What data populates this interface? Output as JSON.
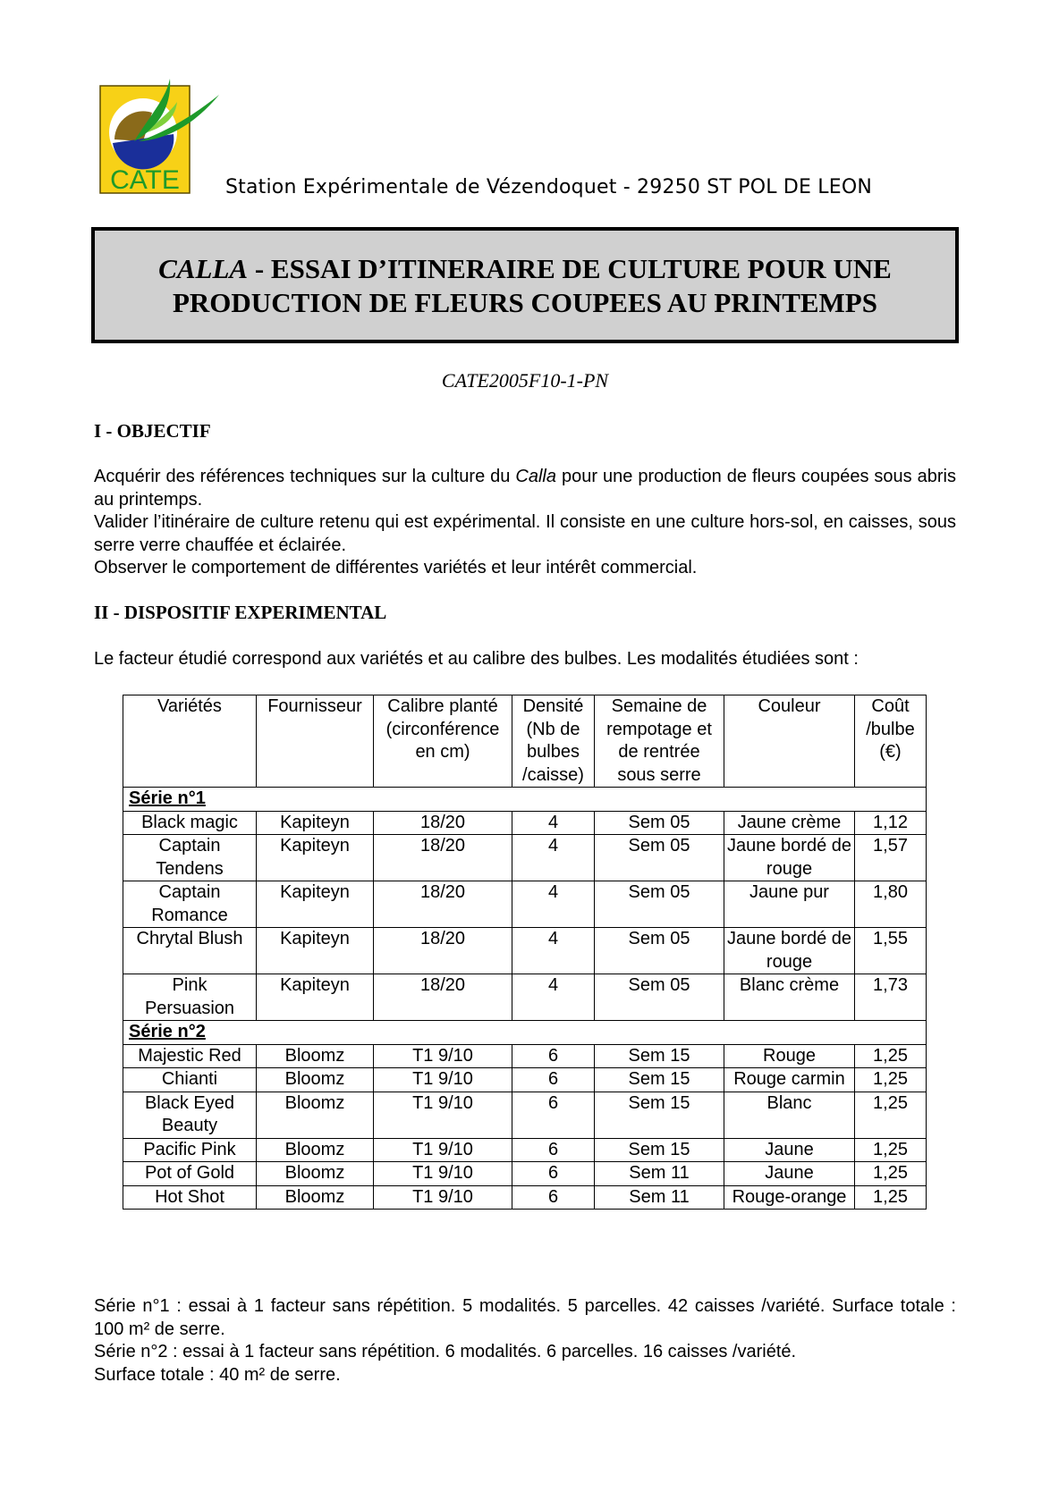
{
  "header": {
    "logo_text": "CATE",
    "station": "Station Expérimentale de Vézendoquet - 29250 ST POL DE LEON",
    "title_italic": "CALLA",
    "title_line1_rest": " - ESSAI D’ITINERAIRE DE CULTURE POUR UNE",
    "title_line2": "PRODUCTION DE FLEURS COUPEES AU PRINTEMPS",
    "code": "CATE2005F10-1-PN"
  },
  "objectif": {
    "heading": "I - OBJECTIF",
    "p1_before": "Acquérir des références techniques sur la culture du ",
    "p1_italic": "Calla",
    "p1_after": " pour une production de fleurs coupées sous abris au printemps.",
    "p2": "Valider l’itinéraire de culture retenu qui est expérimental. Il consiste en une culture hors-sol, en caisses, sous serre verre chauffée et éclairée.",
    "p3": "Observer le comportement de différentes variétés et leur intérêt commercial."
  },
  "dispositif": {
    "heading": "II - DISPOSITIF EXPERIMENTAL",
    "intro": "Le facteur étudié correspond aux variétés et au calibre des bulbes. Les modalités étudiées sont :"
  },
  "table": {
    "headers": [
      "Variétés",
      "Fournisseur",
      "Calibre planté (circonférence en cm)",
      "Densité (Nb de bulbes /caisse)",
      "Semaine de rempotage et de rentrée sous serre",
      "Couleur",
      "Coût /bulbe (€)"
    ],
    "series": [
      {
        "label": "Série n°1",
        "rows": [
          [
            "Black magic",
            "Kapiteyn",
            "18/20",
            "4",
            "Sem 05",
            "Jaune crème",
            "1,12"
          ],
          [
            "Captain Tendens",
            "Kapiteyn",
            "18/20",
            "4",
            "Sem 05",
            "Jaune bordé de rouge",
            "1,57"
          ],
          [
            "Captain Romance",
            "Kapiteyn",
            "18/20",
            "4",
            "Sem 05",
            "Jaune pur",
            "1,80"
          ],
          [
            "Chrytal Blush",
            "Kapiteyn",
            "18/20",
            "4",
            "Sem 05",
            "Jaune bordé de rouge",
            "1,55"
          ],
          [
            "Pink Persuasion",
            "Kapiteyn",
            "18/20",
            "4",
            "Sem 05",
            "Blanc crème",
            "1,73"
          ]
        ]
      },
      {
        "label": "Série n°2",
        "rows": [
          [
            "Majestic Red",
            "Bloomz",
            "T1 9/10",
            "6",
            "Sem 15",
            "Rouge",
            "1,25"
          ],
          [
            "Chianti",
            "Bloomz",
            "T1 9/10",
            "6",
            "Sem 15",
            "Rouge carmin",
            "1,25"
          ],
          [
            "Black Eyed Beauty",
            "Bloomz",
            "T1 9/10",
            "6",
            "Sem 15",
            "Blanc",
            "1,25"
          ],
          [
            "Pacific Pink",
            "Bloomz",
            "T1 9/10",
            "6",
            "Sem 15",
            "Jaune",
            "1,25"
          ],
          [
            "Pot of Gold",
            "Bloomz",
            "T1 9/10",
            "6",
            "Sem 11",
            "Jaune",
            "1,25"
          ],
          [
            "Hot Shot",
            "Bloomz",
            "T1 9/10",
            "6",
            "Sem 11",
            "Rouge-orange",
            "1,25"
          ]
        ]
      }
    ]
  },
  "footer": {
    "s1": "Série n°1 : essai à 1 facteur sans répétition. 5 modalités. 5 parcelles. 42 caisses /variété. Surface totale : 100 m² de serre.",
    "s2a": "Série n°2 : essai à 1 facteur sans répétition. 6 modalités. 6 parcelles. 16 caisses /variété.",
    "s2b": "Surface totale : 40 m² de serre."
  },
  "colors": {
    "logo_yellow": "#f7d117",
    "logo_green": "#1e9a2a",
    "logo_blue": "#1a2f9a",
    "logo_brown": "#8a6a1a",
    "title_bg": "#d0d0d0"
  }
}
